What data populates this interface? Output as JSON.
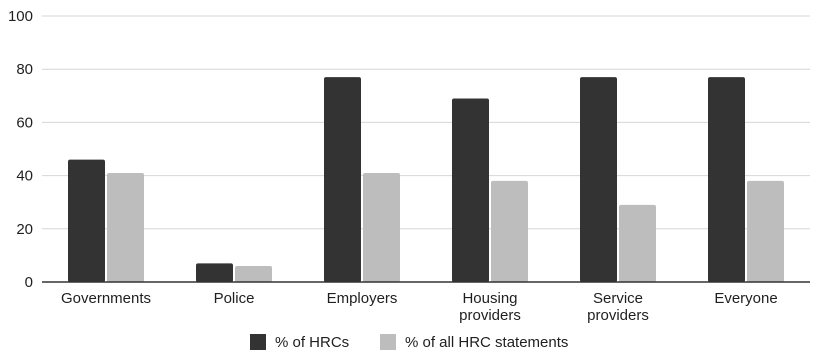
{
  "chart_data": {
    "type": "bar",
    "title": "",
    "xlabel": "",
    "ylabel": "",
    "ylim": [
      0,
      100
    ],
    "yticks": [
      0,
      20,
      40,
      60,
      80,
      100
    ],
    "grid": true,
    "legend_position": "bottom-center",
    "categories": [
      [
        "Governments"
      ],
      [
        "Police"
      ],
      [
        "Employers"
      ],
      [
        "Housing",
        "providers"
      ],
      [
        "Service",
        "providers"
      ],
      [
        "Everyone"
      ]
    ],
    "series": [
      {
        "name": "% of HRCs",
        "color": "#333333",
        "values": [
          46,
          7,
          77,
          69,
          77,
          77
        ]
      },
      {
        "name": "% of all HRC statements",
        "color": "#bdbdbd",
        "values": [
          41,
          6,
          41,
          38,
          29,
          38
        ]
      }
    ],
    "colors": {
      "grid": "#d6d6d6",
      "axis": "#333333"
    }
  }
}
